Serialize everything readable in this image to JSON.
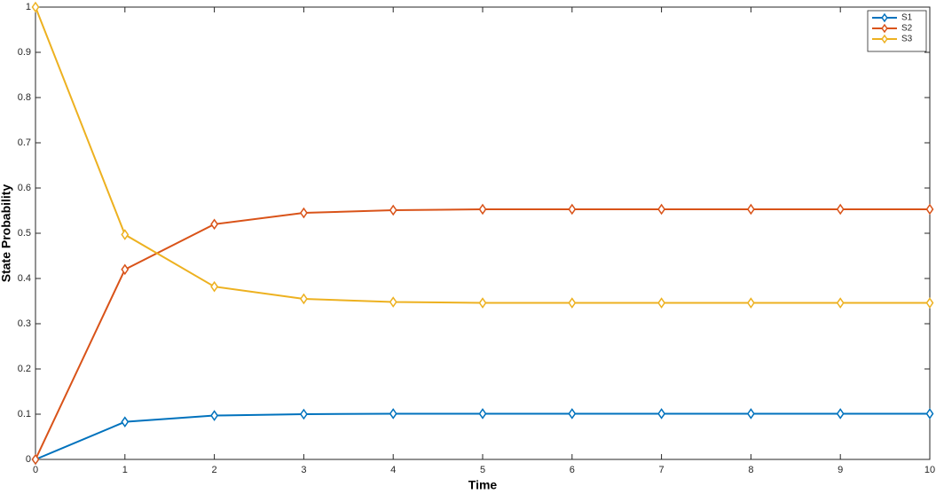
{
  "chart_data": {
    "type": "line",
    "xlabel": "Time",
    "ylabel": "State Probability",
    "x": [
      0,
      1,
      2,
      3,
      4,
      5,
      6,
      7,
      8,
      9,
      10
    ],
    "series": [
      {
        "name": "S1",
        "color": "#0072bd",
        "values": [
          0,
          0.083,
          0.097,
          0.1,
          0.101,
          0.101,
          0.101,
          0.101,
          0.101,
          0.101,
          0.101
        ]
      },
      {
        "name": "S2",
        "color": "#d95319",
        "values": [
          0,
          0.42,
          0.52,
          0.545,
          0.551,
          0.553,
          0.553,
          0.553,
          0.553,
          0.553,
          0.553
        ]
      },
      {
        "name": "S3",
        "color": "#edb120",
        "values": [
          1,
          0.497,
          0.382,
          0.355,
          0.348,
          0.346,
          0.346,
          0.346,
          0.346,
          0.346,
          0.346
        ]
      }
    ],
    "xlim": [
      0,
      10
    ],
    "xticks": [
      0,
      1,
      2,
      3,
      4,
      5,
      6,
      7,
      8,
      9,
      10
    ],
    "ylim": [
      0,
      1
    ],
    "yticks": [
      0,
      0.1,
      0.2,
      0.3,
      0.4,
      0.5,
      0.6,
      0.7,
      0.8,
      0.9,
      1
    ],
    "grid": false,
    "legend": "upper right",
    "marker": "diamond"
  }
}
